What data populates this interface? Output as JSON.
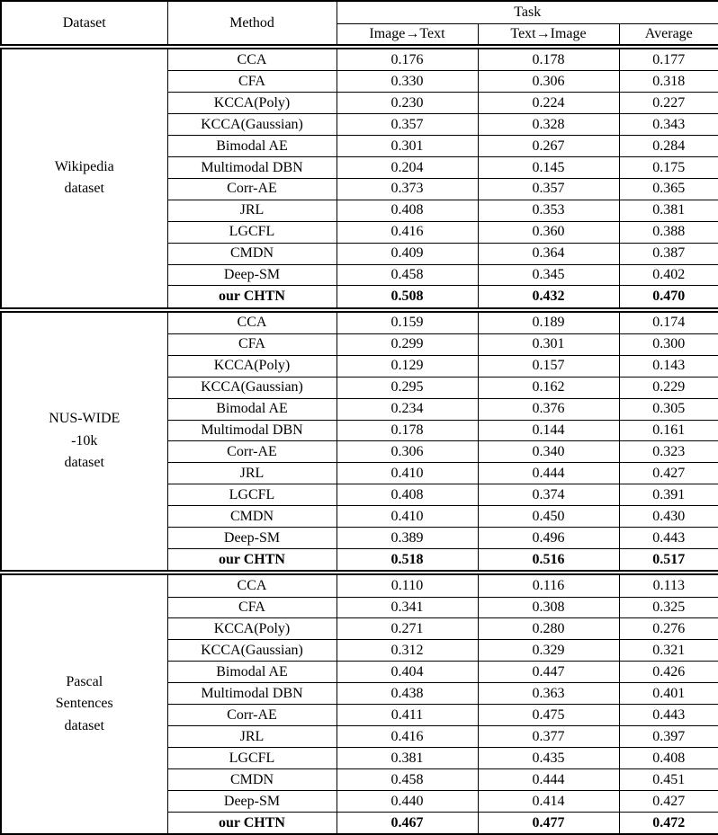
{
  "colors": {
    "background": "#ffffff",
    "text": "#000000",
    "border": "#000000"
  },
  "table": {
    "header": {
      "dataset": "Dataset",
      "method": "Method",
      "task": "Task",
      "subcolumns": [
        "Image→Text",
        "Text→Image",
        "Average"
      ]
    },
    "groups": [
      {
        "dataset_lines": [
          "Wikipedia",
          "dataset"
        ],
        "rows": [
          {
            "method": "CCA",
            "img2txt": "0.176",
            "txt2img": "0.178",
            "avg": "0.177",
            "bold": false
          },
          {
            "method": "CFA",
            "img2txt": "0.330",
            "txt2img": "0.306",
            "avg": "0.318",
            "bold": false
          },
          {
            "method": "KCCA(Poly)",
            "img2txt": "0.230",
            "txt2img": "0.224",
            "avg": "0.227",
            "bold": false
          },
          {
            "method": "KCCA(Gaussian)",
            "img2txt": "0.357",
            "txt2img": "0.328",
            "avg": "0.343",
            "bold": false
          },
          {
            "method": "Bimodal AE",
            "img2txt": "0.301",
            "txt2img": "0.267",
            "avg": "0.284",
            "bold": false
          },
          {
            "method": "Multimodal DBN",
            "img2txt": "0.204",
            "txt2img": "0.145",
            "avg": "0.175",
            "bold": false
          },
          {
            "method": "Corr-AE",
            "img2txt": "0.373",
            "txt2img": "0.357",
            "avg": "0.365",
            "bold": false
          },
          {
            "method": "JRL",
            "img2txt": "0.408",
            "txt2img": "0.353",
            "avg": "0.381",
            "bold": false
          },
          {
            "method": "LGCFL",
            "img2txt": "0.416",
            "txt2img": "0.360",
            "avg": "0.388",
            "bold": false
          },
          {
            "method": "CMDN",
            "img2txt": "0.409",
            "txt2img": "0.364",
            "avg": "0.387",
            "bold": false
          },
          {
            "method": "Deep-SM",
            "img2txt": "0.458",
            "txt2img": "0.345",
            "avg": "0.402",
            "bold": false
          },
          {
            "method": "our CHTN",
            "img2txt": "0.508",
            "txt2img": "0.432",
            "avg": "0.470",
            "bold": true
          }
        ]
      },
      {
        "dataset_lines": [
          "NUS-WIDE",
          "-10k",
          "dataset"
        ],
        "rows": [
          {
            "method": "CCA",
            "img2txt": "0.159",
            "txt2img": "0.189",
            "avg": "0.174",
            "bold": false
          },
          {
            "method": "CFA",
            "img2txt": "0.299",
            "txt2img": "0.301",
            "avg": "0.300",
            "bold": false
          },
          {
            "method": "KCCA(Poly)",
            "img2txt": "0.129",
            "txt2img": "0.157",
            "avg": "0.143",
            "bold": false
          },
          {
            "method": "KCCA(Gaussian)",
            "img2txt": "0.295",
            "txt2img": "0.162",
            "avg": "0.229",
            "bold": false
          },
          {
            "method": "Bimodal AE",
            "img2txt": "0.234",
            "txt2img": "0.376",
            "avg": "0.305",
            "bold": false
          },
          {
            "method": "Multimodal DBN",
            "img2txt": "0.178",
            "txt2img": "0.144",
            "avg": "0.161",
            "bold": false
          },
          {
            "method": "Corr-AE",
            "img2txt": "0.306",
            "txt2img": "0.340",
            "avg": "0.323",
            "bold": false
          },
          {
            "method": "JRL",
            "img2txt": "0.410",
            "txt2img": "0.444",
            "avg": "0.427",
            "bold": false
          },
          {
            "method": "LGCFL",
            "img2txt": "0.408",
            "txt2img": "0.374",
            "avg": "0.391",
            "bold": false
          },
          {
            "method": "CMDN",
            "img2txt": "0.410",
            "txt2img": "0.450",
            "avg": "0.430",
            "bold": false
          },
          {
            "method": "Deep-SM",
            "img2txt": "0.389",
            "txt2img": "0.496",
            "avg": "0.443",
            "bold": false
          },
          {
            "method": "our CHTN",
            "img2txt": "0.518",
            "txt2img": "0.516",
            "avg": "0.517",
            "bold": true
          }
        ]
      },
      {
        "dataset_lines": [
          "Pascal",
          "Sentences",
          "dataset"
        ],
        "rows": [
          {
            "method": "CCA",
            "img2txt": "0.110",
            "txt2img": "0.116",
            "avg": "0.113",
            "bold": false
          },
          {
            "method": "CFA",
            "img2txt": "0.341",
            "txt2img": "0.308",
            "avg": "0.325",
            "bold": false
          },
          {
            "method": "KCCA(Poly)",
            "img2txt": "0.271",
            "txt2img": "0.280",
            "avg": "0.276",
            "bold": false
          },
          {
            "method": "KCCA(Gaussian)",
            "img2txt": "0.312",
            "txt2img": "0.329",
            "avg": "0.321",
            "bold": false
          },
          {
            "method": "Bimodal AE",
            "img2txt": "0.404",
            "txt2img": "0.447",
            "avg": "0.426",
            "bold": false
          },
          {
            "method": "Multimodal DBN",
            "img2txt": "0.438",
            "txt2img": "0.363",
            "avg": "0.401",
            "bold": false
          },
          {
            "method": "Corr-AE",
            "img2txt": "0.411",
            "txt2img": "0.475",
            "avg": "0.443",
            "bold": false
          },
          {
            "method": "JRL",
            "img2txt": "0.416",
            "txt2img": "0.377",
            "avg": "0.397",
            "bold": false
          },
          {
            "method": "LGCFL",
            "img2txt": "0.381",
            "txt2img": "0.435",
            "avg": "0.408",
            "bold": false
          },
          {
            "method": "CMDN",
            "img2txt": "0.458",
            "txt2img": "0.444",
            "avg": "0.451",
            "bold": false
          },
          {
            "method": "Deep-SM",
            "img2txt": "0.440",
            "txt2img": "0.414",
            "avg": "0.427",
            "bold": false
          },
          {
            "method": "our CHTN",
            "img2txt": "0.467",
            "txt2img": "0.477",
            "avg": "0.472",
            "bold": true
          }
        ]
      }
    ]
  }
}
